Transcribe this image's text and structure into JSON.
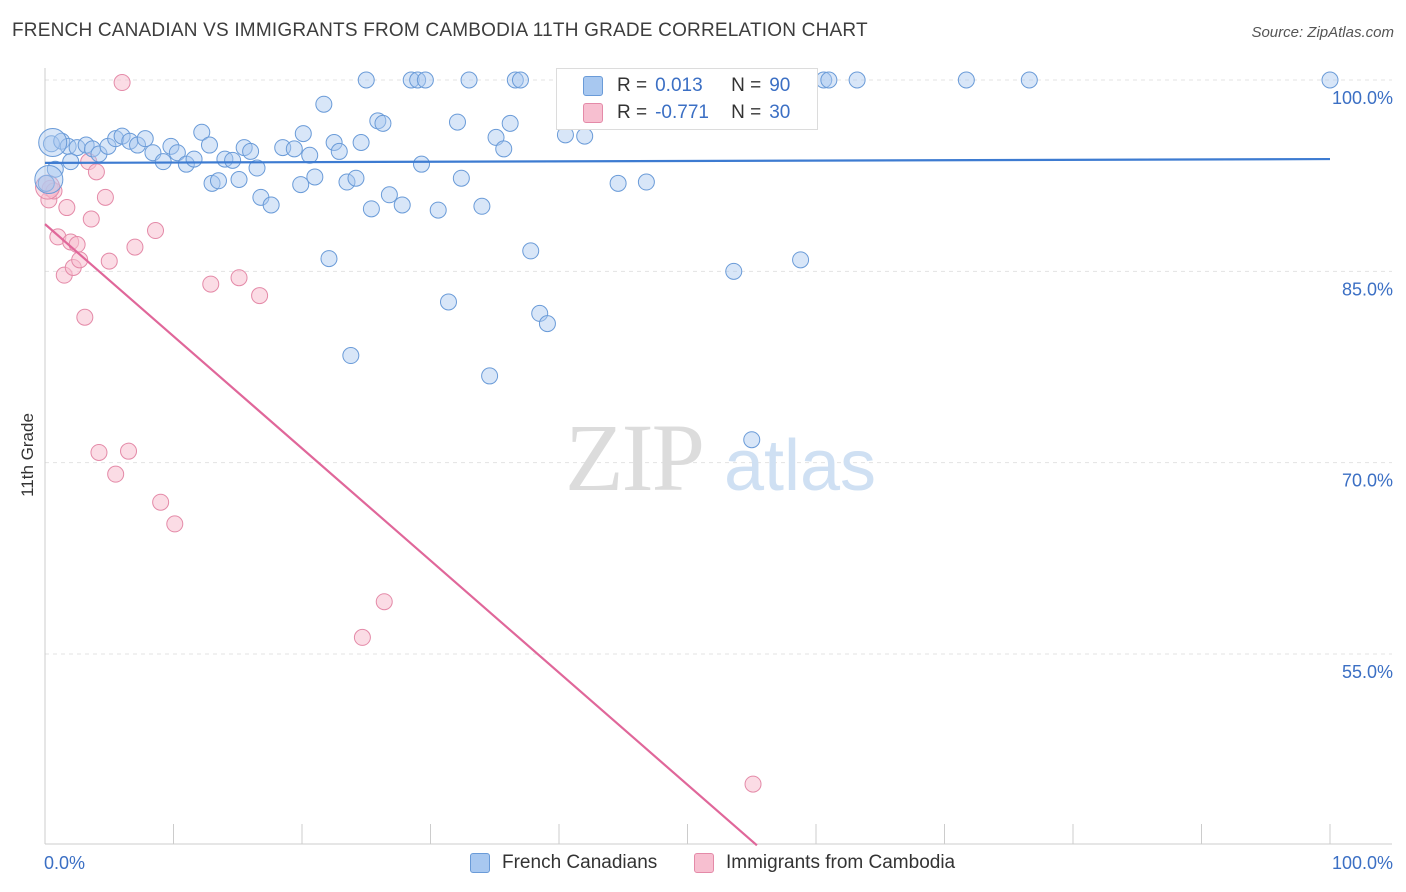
{
  "header": {
    "title": "FRENCH CANADIAN VS IMMIGRANTS FROM CAMBODIA 11TH GRADE CORRELATION CHART",
    "source": "Source: ZipAtlas.com"
  },
  "watermark": {
    "zip": "ZIP",
    "atlas": "atlas"
  },
  "legend": {
    "rows": [
      {
        "r_label": "R =",
        "r_value": "0.013",
        "n_label": "N =",
        "n_value": "90",
        "color": "#a8c8f0",
        "border": "#6a9bd8"
      },
      {
        "r_label": "R =",
        "r_value": "-0.771",
        "n_label": "N =",
        "n_value": "30",
        "color": "#f7bfd0",
        "border": "#e48aa8"
      }
    ]
  },
  "bottom_legend": {
    "items": [
      {
        "label": "French Canadians",
        "color": "#a8c8f0",
        "border": "#6a9bd8"
      },
      {
        "label": "Immigrants from Cambodia",
        "color": "#f7bfd0",
        "border": "#e48aa8"
      }
    ]
  },
  "chart_data": {
    "type": "scatter",
    "title": "FRENCH CANADIAN VS IMMIGRANTS FROM CAMBODIA 11TH GRADE CORRELATION CHART",
    "ylabel": "11th Grade",
    "xlabel": "",
    "xlim": [
      0,
      100
    ],
    "ylim": [
      40.0,
      101.5
    ],
    "x_tick_labels": [
      "0.0%",
      "100.0%"
    ],
    "y_ticks": [
      {
        "value": 100.0,
        "label": "100.0%"
      },
      {
        "value": 85.0,
        "label": "85.0%"
      },
      {
        "value": 70.0,
        "label": "70.0%"
      },
      {
        "value": 55.0,
        "label": "55.0%"
      }
    ],
    "grid": true,
    "colors": {
      "blue": "#6a9bd8",
      "blue_fill": "#a8c8f0",
      "blue_line": "#3d7bd1",
      "pink": "#e48aa8",
      "pink_fill": "#f7bfd0",
      "pink_line": "#e0679a",
      "axis_label": "#3b6fc4"
    },
    "series": [
      {
        "name": "French Canadians",
        "trend": {
          "x": [
            0,
            100
          ],
          "y": [
            93.5,
            93.8
          ]
        },
        "points": [
          [
            0.5,
            95.0
          ],
          [
            1.3,
            95.2
          ],
          [
            1.8,
            94.8
          ],
          [
            2.5,
            94.7
          ],
          [
            3.2,
            94.9
          ],
          [
            3.7,
            94.6
          ],
          [
            4.2,
            94.2
          ],
          [
            4.9,
            94.8
          ],
          [
            5.5,
            95.4
          ],
          [
            6.0,
            95.6
          ],
          [
            6.6,
            95.2
          ],
          [
            7.2,
            94.9
          ],
          [
            7.8,
            95.4
          ],
          [
            8.4,
            94.3
          ],
          [
            9.2,
            93.6
          ],
          [
            9.8,
            94.8
          ],
          [
            10.3,
            94.3
          ],
          [
            11.0,
            93.4
          ],
          [
            11.6,
            93.8
          ],
          [
            12.2,
            95.9
          ],
          [
            12.8,
            94.9
          ],
          [
            13.0,
            91.9
          ],
          [
            13.5,
            92.1
          ],
          [
            14.0,
            93.8
          ],
          [
            14.6,
            93.7
          ],
          [
            15.1,
            92.2
          ],
          [
            15.5,
            94.7
          ],
          [
            16.0,
            94.4
          ],
          [
            16.5,
            93.1
          ],
          [
            16.8,
            90.8
          ],
          [
            17.6,
            90.2
          ],
          [
            18.5,
            94.7
          ],
          [
            19.4,
            94.6
          ],
          [
            19.9,
            91.8
          ],
          [
            20.1,
            95.8
          ],
          [
            20.6,
            94.1
          ],
          [
            21.0,
            92.4
          ],
          [
            21.7,
            98.1
          ],
          [
            22.1,
            86.0
          ],
          [
            22.5,
            95.1
          ],
          [
            22.9,
            94.4
          ],
          [
            23.5,
            92.0
          ],
          [
            23.8,
            78.4
          ],
          [
            24.2,
            92.3
          ],
          [
            24.6,
            95.1
          ],
          [
            25.0,
            100.0
          ],
          [
            25.4,
            89.9
          ],
          [
            25.9,
            96.8
          ],
          [
            26.3,
            96.6
          ],
          [
            26.8,
            91.0
          ],
          [
            27.8,
            90.2
          ],
          [
            28.5,
            100.0
          ],
          [
            29.0,
            100.0
          ],
          [
            29.3,
            93.4
          ],
          [
            29.6,
            100.0
          ],
          [
            30.6,
            89.8
          ],
          [
            31.4,
            82.6
          ],
          [
            32.1,
            96.7
          ],
          [
            32.4,
            92.3
          ],
          [
            33.0,
            100.0
          ],
          [
            34.0,
            90.1
          ],
          [
            34.6,
            76.8
          ],
          [
            35.1,
            95.5
          ],
          [
            35.7,
            94.6
          ],
          [
            36.2,
            96.6
          ],
          [
            36.6,
            100.0
          ],
          [
            37.0,
            100.0
          ],
          [
            37.8,
            86.6
          ],
          [
            38.5,
            81.7
          ],
          [
            39.1,
            80.9
          ],
          [
            40.5,
            95.7
          ],
          [
            42.0,
            95.6
          ],
          [
            44.6,
            91.9
          ],
          [
            45.5,
            100.0
          ],
          [
            46.8,
            92.0
          ],
          [
            47.3,
            100.0
          ],
          [
            47.8,
            100.0
          ],
          [
            52.6,
            100.0
          ],
          [
            53.6,
            85.0
          ],
          [
            55.0,
            71.8
          ],
          [
            58.8,
            85.9
          ],
          [
            60.6,
            100.0
          ],
          [
            61.0,
            100.0
          ],
          [
            63.2,
            100.0
          ],
          [
            71.7,
            100.0
          ],
          [
            76.6,
            100.0
          ],
          [
            100.0,
            100.0
          ],
          [
            0.1,
            91.9
          ],
          [
            0.8,
            93.0
          ],
          [
            2.0,
            93.6
          ]
        ],
        "large_points": [
          [
            0.3,
            92.2
          ],
          [
            0.6,
            95.1
          ]
        ]
      },
      {
        "name": "Immigrants from Cambodia",
        "trend": {
          "x": [
            0,
            55.4
          ],
          "y": [
            88.7,
            40.0
          ]
        },
        "points": [
          [
            0.3,
            90.6
          ],
          [
            0.4,
            91.5
          ],
          [
            0.7,
            91.3
          ],
          [
            1.0,
            87.7
          ],
          [
            1.5,
            84.7
          ],
          [
            1.7,
            90.0
          ],
          [
            2.0,
            87.3
          ],
          [
            2.2,
            85.3
          ],
          [
            2.5,
            87.1
          ],
          [
            2.7,
            85.9
          ],
          [
            3.1,
            81.4
          ],
          [
            3.4,
            93.6
          ],
          [
            3.6,
            89.1
          ],
          [
            4.0,
            92.8
          ],
          [
            4.2,
            70.8
          ],
          [
            4.7,
            90.8
          ],
          [
            5.0,
            85.8
          ],
          [
            5.5,
            69.1
          ],
          [
            6.0,
            99.8
          ],
          [
            6.5,
            70.9
          ],
          [
            7.0,
            86.9
          ],
          [
            8.6,
            88.2
          ],
          [
            9.0,
            66.9
          ],
          [
            10.1,
            65.2
          ],
          [
            12.9,
            84.0
          ],
          [
            15.1,
            84.5
          ],
          [
            16.7,
            83.1
          ],
          [
            24.7,
            56.3
          ],
          [
            26.4,
            59.1
          ],
          [
            55.1,
            44.8
          ]
        ],
        "large_points": [
          [
            0.2,
            91.6
          ]
        ]
      }
    ]
  }
}
